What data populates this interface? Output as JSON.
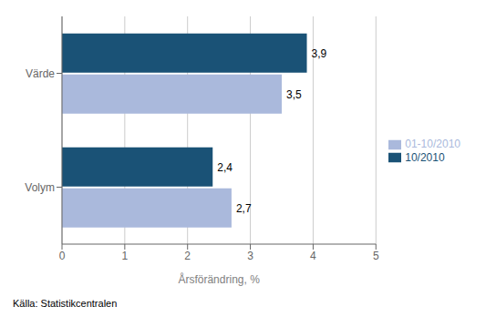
{
  "chart_data": {
    "type": "bar",
    "orientation": "horizontal",
    "categories": [
      "Värde",
      "Volym"
    ],
    "series": [
      {
        "name": "10/2010",
        "color": "#1A5276",
        "values": [
          3.9,
          2.4
        ],
        "value_labels": [
          "3,9",
          "2,4"
        ]
      },
      {
        "name": "01-10/2010",
        "color": "#AAB9DC",
        "values": [
          3.5,
          2.7
        ],
        "value_labels": [
          "3,5",
          "2,7"
        ]
      }
    ],
    "xlabel": "Årsförändring, %",
    "xlim": [
      0,
      5
    ],
    "xticks": [
      0,
      1,
      2,
      3,
      4,
      5
    ],
    "grid": true,
    "legend": "right",
    "data_labels": true,
    "annotations": [
      "Källa: Statistikcentralen"
    ]
  }
}
